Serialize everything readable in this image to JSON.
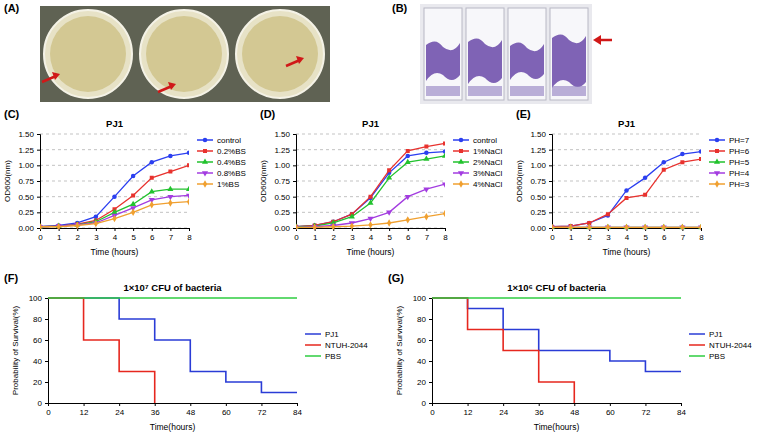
{
  "images": [
    {
      "label": "(A)"
    },
    {
      "label": "(B)"
    }
  ],
  "chart_data": [
    {
      "panel_label": "(C)",
      "type": "line",
      "title": "PJ1",
      "x_label": "Time (hours)",
      "y_label": "OD600(nm)",
      "x": [
        0,
        1,
        2,
        3,
        4,
        5,
        6,
        7,
        8
      ],
      "xlim": [
        0,
        8
      ],
      "xticks": [
        0,
        1,
        2,
        3,
        4,
        5,
        6,
        7,
        8
      ],
      "ylim": [
        0,
        1.5
      ],
      "yticks": [
        {
          "value": 0,
          "label": "0.00"
        },
        {
          "value": 0.25,
          "label": "0.25"
        },
        {
          "value": 0.5,
          "label": "0.50"
        },
        {
          "value": 0.75,
          "label": "0.75"
        },
        {
          "value": 1,
          "label": "1.00"
        },
        {
          "value": 1.25,
          "label": "1.25"
        },
        {
          "value": 1.5,
          "label": "1.50"
        }
      ],
      "grid": true,
      "legend": "right",
      "line_style": "solid",
      "series": [
        {
          "name": "control",
          "color": "#2b3ff0",
          "marker": "circle",
          "values": [
            0.02,
            0.04,
            0.08,
            0.18,
            0.5,
            0.83,
            1.05,
            1.15,
            1.2
          ]
        },
        {
          "name": "0.2%BS",
          "color": "#e8322e",
          "marker": "square",
          "values": [
            0.02,
            0.03,
            0.06,
            0.12,
            0.3,
            0.52,
            0.8,
            0.9,
            1.0
          ]
        },
        {
          "name": "0.4%BS",
          "color": "#22c22e",
          "marker": "triangle",
          "values": [
            0.02,
            0.03,
            0.05,
            0.1,
            0.25,
            0.38,
            0.58,
            0.62,
            0.62
          ]
        },
        {
          "name": "0.8%BS",
          "color": "#a33ce0",
          "marker": "triangle-down",
          "values": [
            0.02,
            0.03,
            0.05,
            0.08,
            0.2,
            0.32,
            0.45,
            0.5,
            0.52
          ]
        },
        {
          "name": "1%BS",
          "color": "#f0a030",
          "marker": "diamond",
          "values": [
            0.02,
            0.02,
            0.04,
            0.07,
            0.15,
            0.25,
            0.37,
            0.4,
            0.42
          ]
        }
      ]
    },
    {
      "panel_label": "(D)",
      "type": "line",
      "title": "PJ1",
      "x_label": "Time (hours)",
      "y_label": "OD600(nm)",
      "x": [
        0,
        1,
        2,
        3,
        4,
        5,
        6,
        7,
        8
      ],
      "xlim": [
        0,
        8
      ],
      "xticks": [
        0,
        1,
        2,
        3,
        4,
        5,
        6,
        7,
        8
      ],
      "ylim": [
        0,
        1.5
      ],
      "yticks": [
        {
          "value": 0,
          "label": "0.00"
        },
        {
          "value": 0.25,
          "label": "0.25"
        },
        {
          "value": 0.5,
          "label": "0.50"
        },
        {
          "value": 0.75,
          "label": "0.75"
        },
        {
          "value": 1,
          "label": "1.00"
        },
        {
          "value": 1.25,
          "label": "1.25"
        },
        {
          "value": 1.5,
          "label": "1.50"
        }
      ],
      "grid": true,
      "legend": "right",
      "line_style": "solid",
      "series": [
        {
          "name": "control",
          "color": "#2b3ff0",
          "marker": "circle",
          "values": [
            0.02,
            0.04,
            0.1,
            0.22,
            0.48,
            0.88,
            1.15,
            1.2,
            1.22
          ]
        },
        {
          "name": "1%NaCl",
          "color": "#e8322e",
          "marker": "square",
          "values": [
            0.02,
            0.04,
            0.1,
            0.22,
            0.5,
            0.92,
            1.23,
            1.3,
            1.35
          ]
        },
        {
          "name": "2%NaCl",
          "color": "#22c22e",
          "marker": "triangle",
          "values": [
            0.02,
            0.03,
            0.08,
            0.18,
            0.4,
            0.8,
            1.05,
            1.1,
            1.15
          ]
        },
        {
          "name": "3%NaCl",
          "color": "#a33ce0",
          "marker": "triangle-down",
          "values": [
            0.01,
            0.02,
            0.04,
            0.08,
            0.15,
            0.25,
            0.5,
            0.62,
            0.7
          ]
        },
        {
          "name": "4%NaCl",
          "color": "#f0a030",
          "marker": "diamond",
          "values": [
            0.01,
            0.01,
            0.02,
            0.03,
            0.05,
            0.08,
            0.13,
            0.18,
            0.23
          ]
        }
      ]
    },
    {
      "panel_label": "(E)",
      "type": "line",
      "title": "PJ1",
      "x_label": "Time (hours)",
      "y_label": "OD600(nm)",
      "x": [
        0,
        1,
        2,
        3,
        4,
        5,
        6,
        7,
        8
      ],
      "xlim": [
        0,
        8
      ],
      "xticks": [
        0,
        1,
        2,
        3,
        4,
        5,
        6,
        7,
        8
      ],
      "ylim": [
        0,
        1.5
      ],
      "yticks": [
        {
          "value": 0,
          "label": "0.00"
        },
        {
          "value": 0.25,
          "label": "0.25"
        },
        {
          "value": 0.5,
          "label": "0.50"
        },
        {
          "value": 0.75,
          "label": "0.75"
        },
        {
          "value": 1,
          "label": "1.00"
        },
        {
          "value": 1.25,
          "label": "1.25"
        },
        {
          "value": 1.5,
          "label": "1.50"
        }
      ],
      "grid": true,
      "legend": "right",
      "line_style": "solid",
      "series": [
        {
          "name": "PH=7",
          "color": "#2b3ff0",
          "marker": "circle",
          "values": [
            0.02,
            0.03,
            0.08,
            0.2,
            0.6,
            0.8,
            1.05,
            1.18,
            1.22
          ]
        },
        {
          "name": "PH=6",
          "color": "#e8322e",
          "marker": "square",
          "values": [
            0.02,
            0.03,
            0.08,
            0.22,
            0.48,
            0.53,
            0.93,
            1.05,
            1.1
          ]
        },
        {
          "name": "PH=5",
          "color": "#22c22e",
          "marker": "triangle",
          "values": [
            0.01,
            0.01,
            0.01,
            0.01,
            0.01,
            0.01,
            0.01,
            0.01,
            0.01
          ]
        },
        {
          "name": "PH=4",
          "color": "#a33ce0",
          "marker": "triangle-down",
          "values": [
            0.01,
            0.01,
            0.01,
            0.01,
            0.01,
            0.01,
            0.01,
            0.01,
            0.01
          ]
        },
        {
          "name": "PH=3",
          "color": "#f0a030",
          "marker": "diamond",
          "values": [
            0.01,
            0.01,
            0.01,
            0.01,
            0.01,
            0.01,
            0.01,
            0.01,
            0.01
          ]
        }
      ]
    },
    {
      "panel_label": "(F)",
      "type": "line",
      "title": "1×10⁷ CFU of bacteria",
      "x_label": "Time(hours)",
      "y_label": "Probability of Survival(%)",
      "xlim": [
        0,
        84
      ],
      "xticks": [
        0,
        12,
        24,
        36,
        48,
        60,
        72,
        84
      ],
      "ylim": [
        0,
        100
      ],
      "yticks": [
        0,
        20,
        40,
        60,
        80,
        100
      ],
      "grid": false,
      "legend": "right",
      "line_style": "step",
      "series": [
        {
          "name": "PJ1",
          "color": "#2a3cd6",
          "x": [
            0,
            24,
            36,
            48,
            60,
            72,
            84
          ],
          "values": [
            100,
            80,
            60,
            30,
            20,
            10,
            10
          ]
        },
        {
          "name": "NTUH-2044",
          "color": "#e6271e",
          "x": [
            0,
            12,
            24,
            36
          ],
          "values": [
            100,
            60,
            30,
            0
          ]
        },
        {
          "name": "PBS",
          "color": "#2ecc40",
          "x": [
            0,
            84
          ],
          "values": [
            100,
            100
          ]
        }
      ]
    },
    {
      "panel_label": "(G)",
      "type": "line",
      "title": "1×10⁶ CFU of bacteria",
      "x_label": "Time(hours)",
      "y_label": "Probability of Survival(%)",
      "xlim": [
        0,
        84
      ],
      "xticks": [
        0,
        12,
        24,
        36,
        48,
        60,
        72,
        84
      ],
      "ylim": [
        0,
        100
      ],
      "yticks": [
        0,
        20,
        40,
        60,
        80,
        100
      ],
      "grid": false,
      "legend": "right",
      "line_style": "step",
      "series": [
        {
          "name": "PJ1",
          "color": "#2a3cd6",
          "x": [
            0,
            12,
            24,
            36,
            60,
            72,
            84
          ],
          "values": [
            100,
            90,
            70,
            50,
            40,
            30,
            30
          ]
        },
        {
          "name": "NTUH-2044",
          "color": "#e6271e",
          "x": [
            0,
            12,
            24,
            36,
            48
          ],
          "values": [
            100,
            70,
            50,
            20,
            0
          ]
        },
        {
          "name": "PBS",
          "color": "#2ecc40",
          "x": [
            0,
            84
          ],
          "values": [
            100,
            100
          ]
        }
      ]
    }
  ]
}
